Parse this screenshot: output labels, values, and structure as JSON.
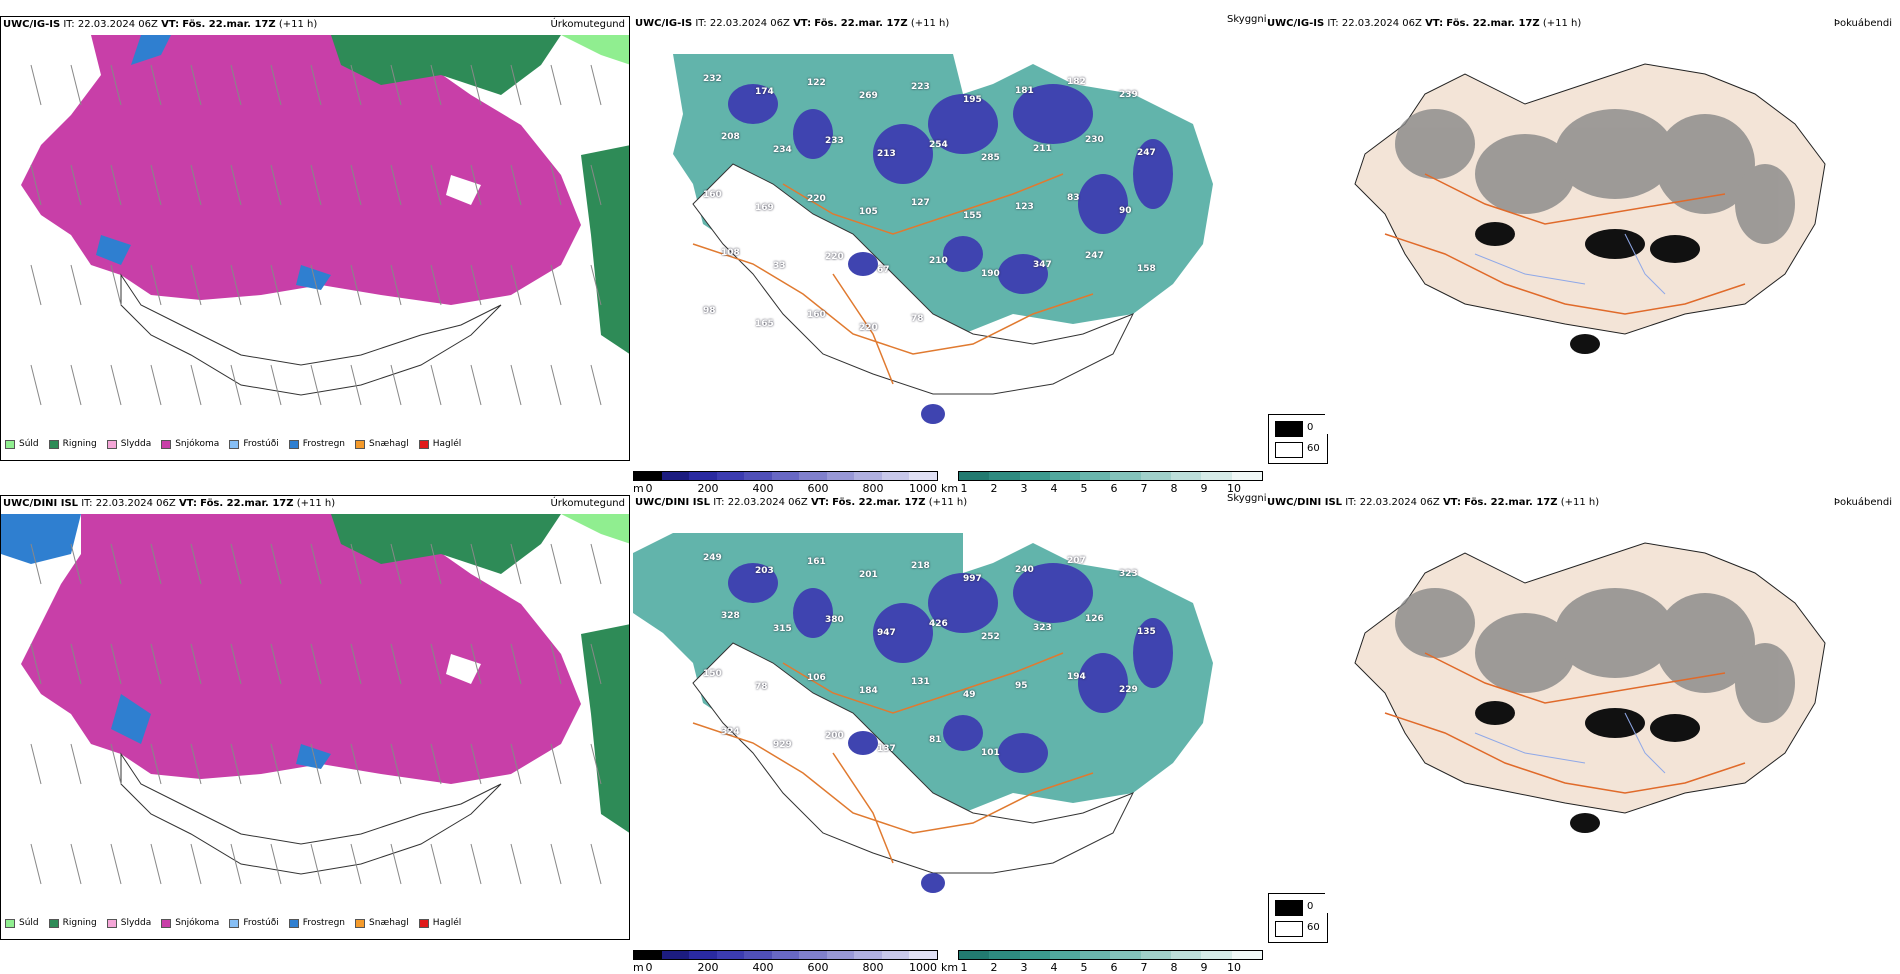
{
  "rows": [
    {
      "model": "UWC/IG-IS",
      "it": "IT: 22.03.2024 06Z",
      "vt_label": "VT:",
      "vt": "Fös. 22.mar. 17Z",
      "lead": "(+11 h)",
      "labels": {
        "precip": "Úrkomutegund",
        "clouds": "Skyggni",
        "fog": "Þokuábendi"
      },
      "snow_numbers": [
        "232",
        "174",
        "122",
        "269",
        "223",
        "195",
        "181",
        "182",
        "239",
        "208",
        "234",
        "233",
        "213",
        "254",
        "285",
        "211",
        "230",
        "247",
        "160",
        "169",
        "220",
        "105",
        "127",
        "155",
        "123",
        "83",
        "90",
        "108",
        "33",
        "220",
        "67",
        "210",
        "190",
        "347",
        "247",
        "158",
        "98",
        "165",
        "160",
        "220",
        "78"
      ]
    },
    {
      "model": "UWC/DINI ISL",
      "it": "IT: 22.03.2024 06Z",
      "vt_label": "VT:",
      "vt": "Fös. 22.mar. 17Z",
      "lead": "(+11 h)",
      "labels": {
        "precip": "Úrkomutegund",
        "clouds": "Skyggni",
        "fog": "Þokuábendi"
      },
      "snow_numbers": [
        "249",
        "203",
        "161",
        "201",
        "218",
        "997",
        "240",
        "207",
        "323",
        "328",
        "315",
        "380",
        "947",
        "426",
        "252",
        "323",
        "126",
        "135",
        "150",
        "78",
        "106",
        "184",
        "131",
        "49",
        "95",
        "194",
        "229",
        "324",
        "929",
        "200",
        "137",
        "81",
        "101"
      ]
    }
  ],
  "precip_legend": [
    {
      "label": "Súld",
      "color": "#90ee90"
    },
    {
      "label": "Rigning",
      "color": "#2e8b57"
    },
    {
      "label": "Slydda",
      "color": "#f4a6d7"
    },
    {
      "label": "Snjókoma",
      "color": "#c83fa8"
    },
    {
      "label": "Frostúði",
      "color": "#87bff5"
    },
    {
      "label": "Frostregn",
      "color": "#2f7fd0"
    },
    {
      "label": "Snæhagl",
      "color": "#f49a2a"
    },
    {
      "label": "Haglél",
      "color": "#e01a1a"
    }
  ],
  "height_bar": {
    "unit": "m",
    "ticks": [
      "0",
      "200",
      "400",
      "600",
      "800",
      "1000"
    ]
  },
  "vis_bar": {
    "unit": "km",
    "ticks": [
      "1",
      "2",
      "3",
      "4",
      "5",
      "6",
      "7",
      "8",
      "9",
      "10"
    ]
  },
  "cloud_legend": [
    "0",
    "60"
  ],
  "colors": {
    "snow": "#c83fa8",
    "rain": "#2e8b57",
    "freezing": "#2f7fd0",
    "teal": "#2e9b8f",
    "land": "#f3e4d7",
    "roads": "#e06a2a"
  }
}
